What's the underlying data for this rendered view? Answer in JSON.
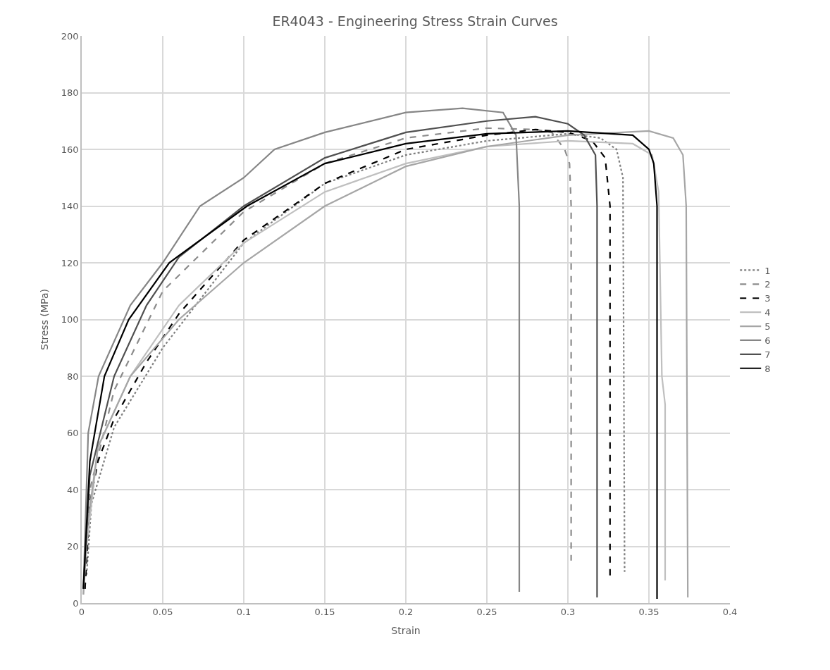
{
  "chart_data": {
    "type": "line",
    "title": "ER4043 - Engineering Stress Strain Curves",
    "xlabel": "Strain",
    "ylabel": "Stress (MPa)",
    "xlim": [
      0,
      0.4
    ],
    "xticks": [
      0,
      0.05,
      0.1,
      0.15,
      0.2,
      0.25,
      0.3,
      0.35,
      0.4
    ],
    "ylim": [
      0,
      200
    ],
    "yticks": [
      0,
      20,
      40,
      60,
      80,
      100,
      120,
      140,
      160,
      180,
      200
    ],
    "grid": true,
    "legend": "right",
    "marker": "none",
    "series": [
      {
        "name": "1",
        "color": "#7f7f7f",
        "line_style": "dotted",
        "x": [
          0.003,
          0.006,
          0.02,
          0.05,
          0.1,
          0.15,
          0.2,
          0.25,
          0.3,
          0.32,
          0.33,
          0.334,
          0.335
        ],
        "values": [
          10,
          35,
          62,
          90,
          127,
          148,
          158,
          163,
          165.5,
          164,
          160,
          150,
          11
        ]
      },
      {
        "name": "2",
        "color": "#8c8c8c",
        "line_style": "dashed",
        "x": [
          0.002,
          0.005,
          0.02,
          0.05,
          0.1,
          0.15,
          0.2,
          0.25,
          0.28,
          0.29,
          0.298,
          0.301,
          0.302,
          0.302
        ],
        "values": [
          5,
          40,
          75,
          110,
          138,
          155,
          164,
          167.5,
          167,
          166,
          160,
          155,
          140,
          15
        ]
      },
      {
        "name": "3",
        "color": "#000000",
        "line_style": "dashed",
        "x": [
          0.002,
          0.005,
          0.01,
          0.02,
          0.04,
          0.06,
          0.1,
          0.15,
          0.2,
          0.25,
          0.28,
          0.3,
          0.315,
          0.323,
          0.326,
          0.326
        ],
        "values": [
          5,
          35,
          50,
          65,
          85,
          102,
          128,
          148,
          160,
          165,
          167,
          166,
          163,
          157,
          140,
          9
        ]
      },
      {
        "name": "4",
        "color": "#bfbfbf",
        "line_style": "solid",
        "x": [
          0.001,
          0.003,
          0.01,
          0.03,
          0.06,
          0.1,
          0.15,
          0.2,
          0.25,
          0.3,
          0.34,
          0.352,
          0.356,
          0.358,
          0.36,
          0.36
        ],
        "values": [
          3,
          20,
          55,
          80,
          105,
          127,
          145,
          155,
          161,
          163,
          162,
          158,
          145,
          80,
          70,
          8
        ]
      },
      {
        "name": "5",
        "color": "#a6a6a6",
        "line_style": "solid",
        "x": [
          0.001,
          0.003,
          0.01,
          0.03,
          0.06,
          0.1,
          0.15,
          0.2,
          0.25,
          0.3,
          0.35,
          0.365,
          0.371,
          0.373,
          0.374
        ],
        "values": [
          3,
          25,
          55,
          80,
          100,
          120,
          140,
          154,
          161,
          165,
          166.5,
          164,
          158,
          140,
          2
        ]
      },
      {
        "name": "6",
        "color": "#868686",
        "line_style": "solid",
        "x": [
          0.001,
          0.004,
          0.0104,
          0.03,
          0.05,
          0.073,
          0.1,
          0.119,
          0.15,
          0.2,
          0.235,
          0.26,
          0.268,
          0.27,
          0.27
        ],
        "values": [
          5,
          60,
          80,
          105,
          120,
          140,
          150,
          160,
          166,
          173,
          174.5,
          173,
          165,
          140,
          4
        ]
      },
      {
        "name": "7",
        "color": "#505050",
        "line_style": "solid",
        "x": [
          0.001,
          0.005,
          0.02,
          0.04,
          0.06,
          0.1,
          0.15,
          0.2,
          0.25,
          0.28,
          0.3,
          0.31,
          0.317,
          0.318,
          0.318
        ],
        "values": [
          5,
          45,
          80,
          105,
          122,
          140,
          157,
          166,
          170,
          171.5,
          169,
          165,
          158,
          140,
          2
        ]
      },
      {
        "name": "8",
        "color": "#000000",
        "line_style": "solid",
        "x": [
          0.001,
          0.005,
          0.014,
          0.029,
          0.054,
          0.102,
          0.15,
          0.2,
          0.25,
          0.3,
          0.34,
          0.35,
          0.353,
          0.355,
          0.355
        ],
        "values": [
          5,
          50,
          80,
          100,
          120,
          140,
          155,
          162,
          165.5,
          166.5,
          165,
          160,
          155,
          140,
          1.5
        ]
      }
    ]
  }
}
